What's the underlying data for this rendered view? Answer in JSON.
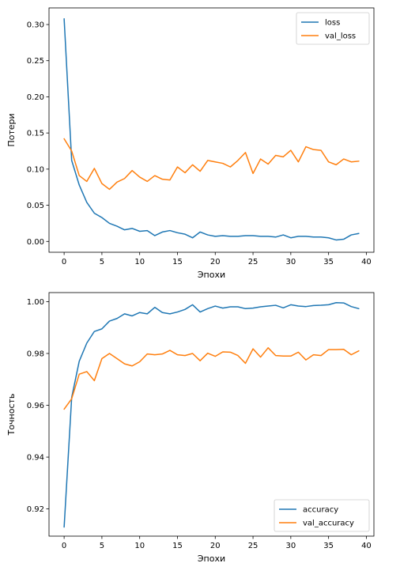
{
  "chart_data": [
    {
      "type": "line",
      "xlabel": "Эпохи",
      "ylabel": "Потери",
      "xlim": [
        -2,
        41
      ],
      "ylim": [
        -0.015,
        0.323
      ],
      "xticks": [
        0,
        5,
        10,
        15,
        20,
        25,
        30,
        35,
        40
      ],
      "yticks": [
        0.0,
        0.05,
        0.1,
        0.15,
        0.2,
        0.25,
        0.3
      ],
      "ytick_labels": [
        "0.00",
        "0.05",
        "0.10",
        "0.15",
        "0.20",
        "0.25",
        "0.30"
      ],
      "legend_position": "upper right",
      "grid": false,
      "x": [
        0,
        1,
        2,
        3,
        4,
        5,
        6,
        7,
        8,
        9,
        10,
        11,
        12,
        13,
        14,
        15,
        16,
        17,
        18,
        19,
        20,
        21,
        22,
        23,
        24,
        25,
        26,
        27,
        28,
        29,
        30,
        31,
        32,
        33,
        34,
        35,
        36,
        37,
        38,
        39
      ],
      "series": [
        {
          "name": "loss",
          "color": "#1f77b4",
          "values": [
            0.308,
            0.112,
            0.078,
            0.054,
            0.039,
            0.033,
            0.025,
            0.021,
            0.016,
            0.018,
            0.014,
            0.015,
            0.008,
            0.013,
            0.015,
            0.012,
            0.01,
            0.005,
            0.013,
            0.009,
            0.007,
            0.008,
            0.007,
            0.007,
            0.008,
            0.008,
            0.007,
            0.007,
            0.006,
            0.009,
            0.005,
            0.007,
            0.007,
            0.006,
            0.006,
            0.005,
            0.002,
            0.003,
            0.009,
            0.011
          ]
        },
        {
          "name": "val_loss",
          "color": "#ff7f0e",
          "values": [
            0.142,
            0.125,
            0.091,
            0.083,
            0.101,
            0.08,
            0.072,
            0.082,
            0.087,
            0.098,
            0.089,
            0.083,
            0.091,
            0.086,
            0.085,
            0.103,
            0.095,
            0.106,
            0.097,
            0.112,
            0.11,
            0.108,
            0.103,
            0.112,
            0.123,
            0.094,
            0.114,
            0.107,
            0.119,
            0.117,
            0.126,
            0.11,
            0.131,
            0.127,
            0.126,
            0.11,
            0.106,
            0.114,
            0.11,
            0.111
          ]
        }
      ]
    },
    {
      "type": "line",
      "xlabel": "Эпохи",
      "ylabel": "Точность",
      "xlim": [
        -2,
        41
      ],
      "ylim": [
        0.9095,
        1.0035
      ],
      "xticks": [
        0,
        5,
        10,
        15,
        20,
        25,
        30,
        35,
        40
      ],
      "yticks": [
        0.92,
        0.94,
        0.96,
        0.98,
        1.0
      ],
      "ytick_labels": [
        "0.92",
        "0.94",
        "0.96",
        "0.98",
        "1.00"
      ],
      "legend_position": "lower right",
      "grid": false,
      "x": [
        0,
        1,
        2,
        3,
        4,
        5,
        6,
        7,
        8,
        9,
        10,
        11,
        12,
        13,
        14,
        15,
        16,
        17,
        18,
        19,
        20,
        21,
        22,
        23,
        24,
        25,
        26,
        27,
        28,
        29,
        30,
        31,
        32,
        33,
        34,
        35,
        36,
        37,
        38,
        39
      ],
      "series": [
        {
          "name": "accuracy",
          "color": "#1f77b4",
          "values": [
            0.913,
            0.963,
            0.977,
            0.984,
            0.9885,
            0.9895,
            0.9925,
            0.9935,
            0.9953,
            0.9945,
            0.9958,
            0.9953,
            0.9978,
            0.9958,
            0.9953,
            0.996,
            0.997,
            0.9988,
            0.996,
            0.9973,
            0.9983,
            0.9975,
            0.998,
            0.998,
            0.9973,
            0.9975,
            0.998,
            0.9983,
            0.9986,
            0.9976,
            0.9988,
            0.9983,
            0.9981,
            0.9985,
            0.9986,
            0.9988,
            0.9996,
            0.9995,
            0.9981,
            0.9973
          ]
        },
        {
          "name": "val_accuracy",
          "color": "#ff7f0e",
          "values": [
            0.9585,
            0.9625,
            0.972,
            0.973,
            0.9695,
            0.978,
            0.98,
            0.978,
            0.976,
            0.9752,
            0.9768,
            0.9798,
            0.9795,
            0.9798,
            0.9812,
            0.9795,
            0.9792,
            0.98,
            0.9772,
            0.9801,
            0.9789,
            0.9806,
            0.9805,
            0.9792,
            0.9762,
            0.9818,
            0.9786,
            0.9822,
            0.9792,
            0.979,
            0.979,
            0.9805,
            0.9775,
            0.9795,
            0.9792,
            0.9815,
            0.9815,
            0.9816,
            0.9795,
            0.981
          ]
        }
      ]
    }
  ]
}
